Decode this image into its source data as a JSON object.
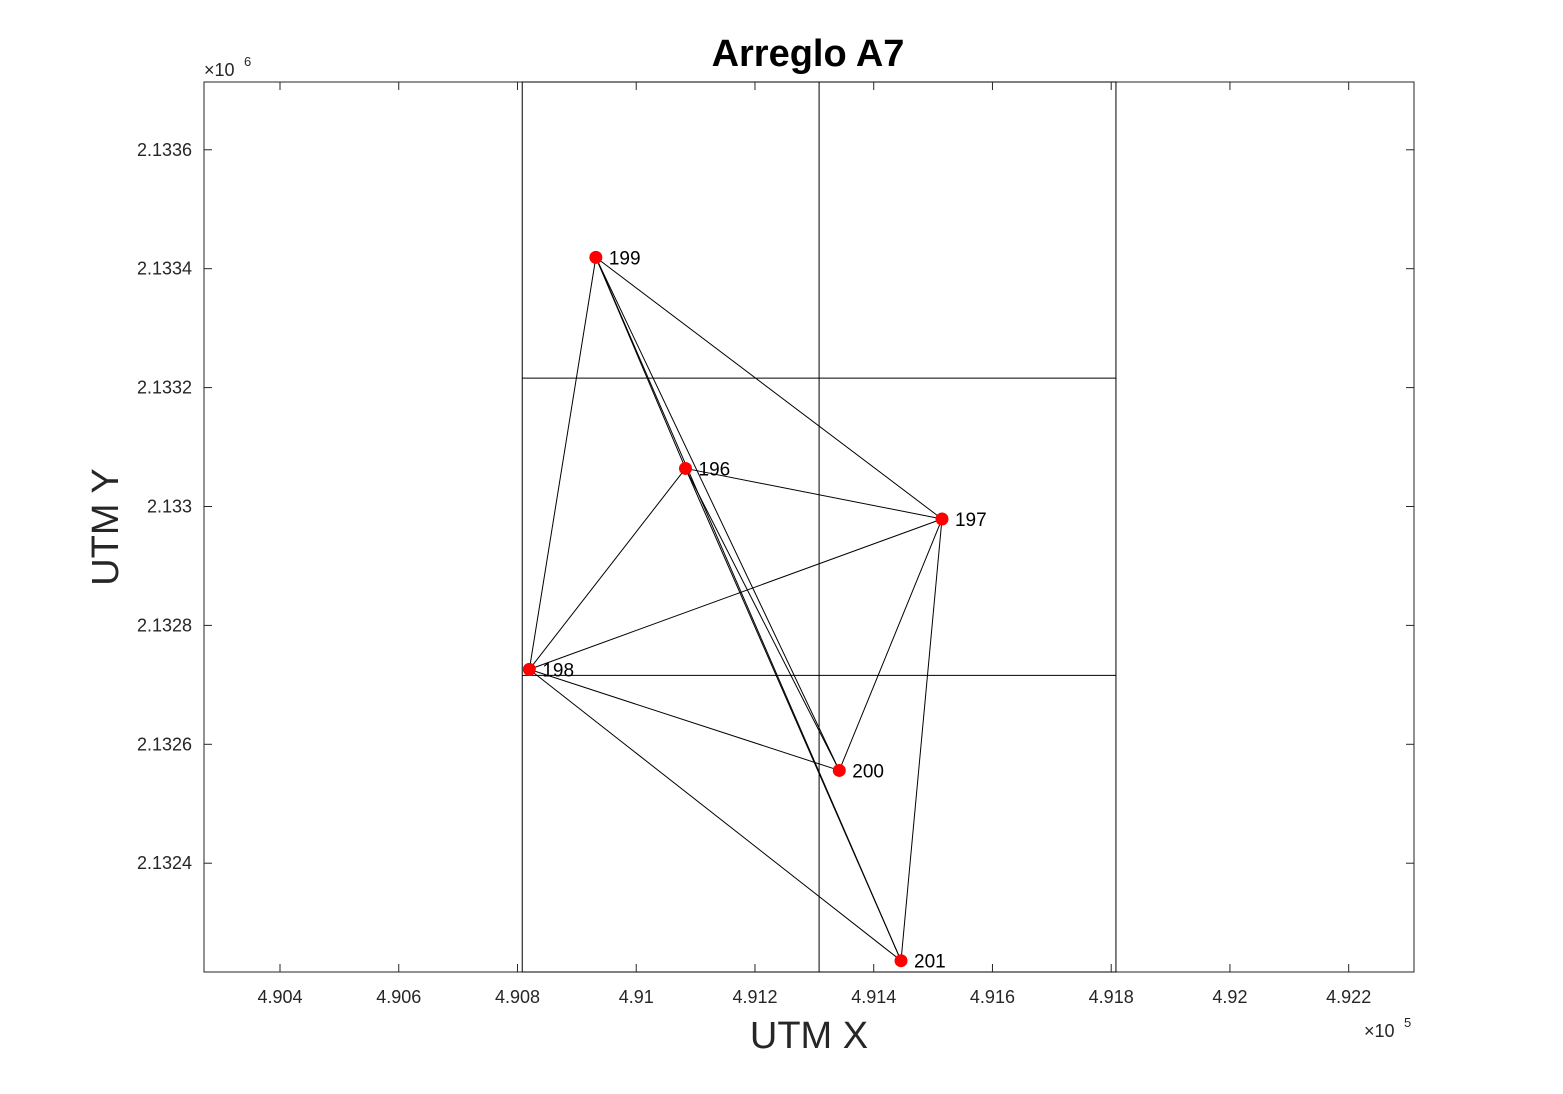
{
  "chart_data": {
    "type": "scatter",
    "title": "Arreglo A7",
    "xlabel": "UTM X",
    "ylabel": "UTM Y",
    "x_exponent_label": "×10",
    "x_exponent_power": "5",
    "y_exponent_label": "×10",
    "y_exponent_power": "6",
    "xlim": [
      490272,
      492310
    ],
    "ylim": [
      2132217,
      2133714
    ],
    "x_ticks": [
      490400,
      490600,
      490800,
      491000,
      491200,
      491400,
      491600,
      491800,
      492000,
      492200
    ],
    "x_tick_labels": [
      "4.904",
      "4.906",
      "4.908",
      "4.91",
      "4.912",
      "4.914",
      "4.916",
      "4.918",
      "4.92",
      "4.922"
    ],
    "y_ticks": [
      2132400,
      2132600,
      2132800,
      2133000,
      2133200,
      2133400,
      2133600
    ],
    "y_tick_labels": [
      "2.1324",
      "2.1326",
      "2.1328",
      "2.133",
      "2.1332",
      "2.1334",
      "2.1336"
    ],
    "grid": false,
    "marker_color": "#ff0000",
    "line_color": "#000000",
    "points": [
      {
        "label": "196",
        "x": 491083,
        "y": 2133064
      },
      {
        "label": "197",
        "x": 491515,
        "y": 2132979
      },
      {
        "label": "198",
        "x": 490820,
        "y": 2132726
      },
      {
        "label": "199",
        "x": 490932,
        "y": 2133419
      },
      {
        "label": "200",
        "x": 491342,
        "y": 2132556
      },
      {
        "label": "201",
        "x": 491446,
        "y": 2132236
      }
    ],
    "edges": [
      [
        "199",
        "196"
      ],
      [
        "199",
        "197"
      ],
      [
        "199",
        "198"
      ],
      [
        "199",
        "200"
      ],
      [
        "199",
        "201"
      ],
      [
        "196",
        "197"
      ],
      [
        "196",
        "198"
      ],
      [
        "196",
        "200"
      ],
      [
        "196",
        "201"
      ],
      [
        "197",
        "198"
      ],
      [
        "197",
        "200"
      ],
      [
        "197",
        "201"
      ],
      [
        "198",
        "200"
      ],
      [
        "198",
        "201"
      ]
    ],
    "rectangle_x": [
      490808,
      491808
    ],
    "rectangle_y": [
      2132217,
      2133714
    ],
    "rectangle_divider_x": [
      491308
    ],
    "rectangle_divider_y": [
      2132716,
      2133216
    ]
  }
}
